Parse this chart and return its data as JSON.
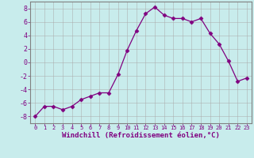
{
  "x": [
    0,
    1,
    2,
    3,
    4,
    5,
    6,
    7,
    8,
    9,
    10,
    11,
    12,
    13,
    14,
    15,
    16,
    17,
    18,
    19,
    20,
    21,
    22,
    23
  ],
  "y": [
    -8,
    -6.5,
    -6.5,
    -7,
    -6.5,
    -5.5,
    -5,
    -4.5,
    -4.5,
    -1.8,
    1.8,
    4.7,
    7.2,
    8.2,
    7.0,
    6.5,
    6.5,
    6.0,
    6.5,
    4.3,
    2.7,
    0.2,
    -2.8,
    -2.3
  ],
  "line_color": "#800080",
  "marker": "D",
  "marker_size": 2.5,
  "bg_color": "#c8ecec",
  "grid_color": "#aaaaaa",
  "xlabel": "Windchill (Refroidissement éolien,°C)",
  "xlabel_color": "#800080",
  "tick_color": "#800080",
  "spine_color": "#808080",
  "ylim": [
    -9,
    9
  ],
  "xlim": [
    -0.5,
    23.5
  ],
  "yticks": [
    -8,
    -6,
    -4,
    -2,
    0,
    2,
    4,
    6,
    8
  ],
  "xticks": [
    0,
    1,
    2,
    3,
    4,
    5,
    6,
    7,
    8,
    9,
    10,
    11,
    12,
    13,
    14,
    15,
    16,
    17,
    18,
    19,
    20,
    21,
    22,
    23
  ],
  "xlabel_fontsize": 6.5,
  "xtick_fontsize": 5.0,
  "ytick_fontsize": 6.0
}
